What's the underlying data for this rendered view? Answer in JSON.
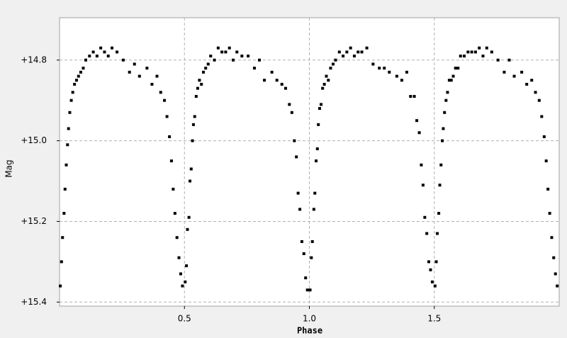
{
  "chart_data": {
    "type": "scatter",
    "xlabel": "Phase",
    "ylabel": "Mag",
    "xlim": [
      0,
      2
    ],
    "ylim": [
      15.41,
      14.695
    ],
    "xticks": [
      0.5,
      {
        "value": 1,
        "label": "1.0"
      },
      1.5
    ],
    "yticks": [
      {
        "value": 14.8,
        "label": "+14.8"
      },
      {
        "value": 15.0,
        "label": "+15.0"
      },
      {
        "value": 15.2,
        "label": "+15.2"
      },
      {
        "value": 15.4,
        "label": "+15.4"
      }
    ],
    "grid": true,
    "series": [
      {
        "color": "#000000",
        "x": [
          0.003,
          0.008,
          0.012,
          0.018,
          0.022,
          0.027,
          0.032,
          0.036,
          0.041,
          0.047,
          0.053,
          0.06,
          0.068,
          0.076,
          0.085,
          0.095,
          0.105,
          0.12,
          0.135,
          0.15,
          0.165,
          0.18,
          0.195,
          0.21,
          0.23,
          0.255,
          0.28,
          0.3,
          0.32,
          0.35,
          0.37,
          0.39,
          0.405,
          0.42,
          0.43,
          0.44,
          0.448,
          0.455,
          0.462,
          0.47,
          0.478,
          0.485,
          0.492,
          0.503,
          0.508,
          0.512,
          0.518,
          0.522,
          0.527,
          0.532,
          0.536,
          0.541,
          0.547,
          0.553,
          0.56,
          0.568,
          0.576,
          0.585,
          0.595,
          0.605,
          0.62,
          0.635,
          0.65,
          0.665,
          0.68,
          0.695,
          0.71,
          0.73,
          0.755,
          0.78,
          0.8,
          0.82,
          0.85,
          0.87,
          0.89,
          0.905,
          0.92,
          0.93,
          0.94,
          0.948,
          0.955,
          0.962,
          0.97,
          0.978,
          0.985,
          0.992,
          1.003,
          1.008,
          1.012,
          1.018,
          1.022,
          1.027,
          1.032,
          1.036,
          1.041,
          1.047,
          1.053,
          1.06,
          1.068,
          1.076,
          1.085,
          1.095,
          1.105,
          1.12,
          1.135,
          1.15,
          1.165,
          1.18,
          1.195,
          1.21,
          1.23,
          1.255,
          1.28,
          1.3,
          1.32,
          1.35,
          1.37,
          1.39,
          1.405,
          1.42,
          1.43,
          1.44,
          1.448,
          1.455,
          1.462,
          1.47,
          1.478,
          1.485,
          1.492,
          1.503,
          1.508,
          1.512,
          1.518,
          1.522,
          1.527,
          1.532,
          1.536,
          1.541,
          1.547,
          1.553,
          1.56,
          1.568,
          1.576,
          1.585,
          1.595,
          1.605,
          1.62,
          1.635,
          1.65,
          1.665,
          1.68,
          1.695,
          1.71,
          1.73,
          1.755,
          1.78,
          1.8,
          1.82,
          1.85,
          1.87,
          1.89,
          1.905,
          1.92,
          1.93,
          1.94,
          1.948,
          1.955,
          1.962,
          1.97,
          1.978,
          1.985,
          1.992
        ],
        "values": [
          15.36,
          15.3,
          15.24,
          15.18,
          15.12,
          15.06,
          15.01,
          14.97,
          14.93,
          14.9,
          14.88,
          14.86,
          14.85,
          14.84,
          14.83,
          14.82,
          14.8,
          14.79,
          14.78,
          14.79,
          14.77,
          14.78,
          14.79,
          14.77,
          14.78,
          14.8,
          14.83,
          14.81,
          14.84,
          14.82,
          14.86,
          14.84,
          14.88,
          14.9,
          14.94,
          14.99,
          15.05,
          15.12,
          15.18,
          15.24,
          15.29,
          15.33,
          15.36,
          15.35,
          15.31,
          15.22,
          15.19,
          15.1,
          15.07,
          15.0,
          14.96,
          14.94,
          14.89,
          14.87,
          14.85,
          14.86,
          14.83,
          14.82,
          14.81,
          14.79,
          14.8,
          14.77,
          14.78,
          14.78,
          14.77,
          14.8,
          14.78,
          14.79,
          14.79,
          14.82,
          14.8,
          14.85,
          14.83,
          14.85,
          14.86,
          14.87,
          14.91,
          14.93,
          15.0,
          15.04,
          15.13,
          15.17,
          15.25,
          15.28,
          15.34,
          15.37,
          15.37,
          15.29,
          15.25,
          15.17,
          15.13,
          15.05,
          15.02,
          14.96,
          14.92,
          14.91,
          14.87,
          14.86,
          14.84,
          14.85,
          14.82,
          14.81,
          14.8,
          14.78,
          14.79,
          14.78,
          14.77,
          14.79,
          14.78,
          14.78,
          14.77,
          14.81,
          14.82,
          14.82,
          14.83,
          14.84,
          14.85,
          14.83,
          14.89,
          14.89,
          14.95,
          14.98,
          15.06,
          15.11,
          15.19,
          15.23,
          15.3,
          15.32,
          15.35,
          15.36,
          15.3,
          15.23,
          15.18,
          15.11,
          15.06,
          15.0,
          14.97,
          14.93,
          14.9,
          14.88,
          14.85,
          14.85,
          14.84,
          14.82,
          14.82,
          14.79,
          14.79,
          14.78,
          14.78,
          14.78,
          14.77,
          14.79,
          14.77,
          14.78,
          14.8,
          14.83,
          14.8,
          14.84,
          14.83,
          14.86,
          14.85,
          14.88,
          14.9,
          14.94,
          14.99,
          15.05,
          15.12,
          15.18,
          15.24,
          15.29,
          15.33,
          15.36
        ]
      }
    ]
  }
}
